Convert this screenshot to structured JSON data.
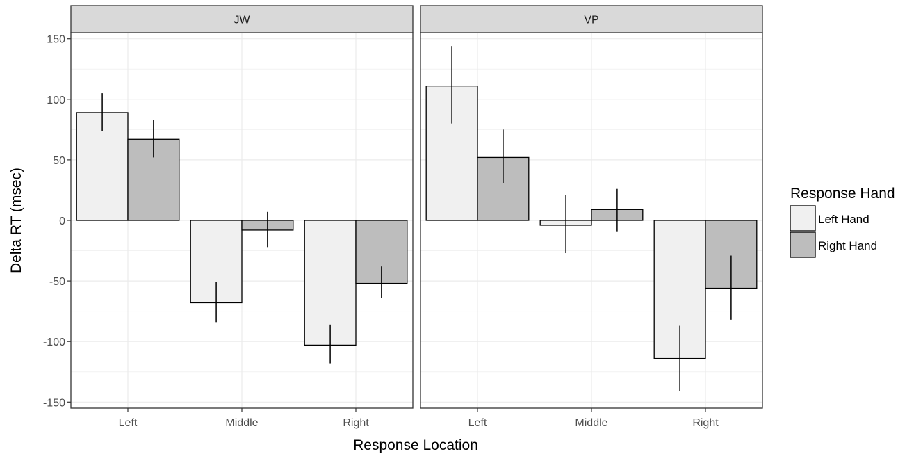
{
  "chart_data": {
    "type": "bar",
    "facets": [
      "JW",
      "VP"
    ],
    "categories": [
      "Left",
      "Middle",
      "Right"
    ],
    "xlabel": "Response Location",
    "ylabel": "Delta RT (msec)",
    "ylim": [
      -155,
      155
    ],
    "yticks": [
      -150,
      -100,
      -50,
      0,
      50,
      100,
      150
    ],
    "ytick_labels": [
      "-150",
      "-100",
      "-50",
      "0",
      "50",
      "100",
      "150"
    ],
    "grid": true,
    "legend": {
      "title": "Response Hand",
      "placement": "right",
      "entries": [
        {
          "label": "Left Hand",
          "color": "#f0f0f0"
        },
        {
          "label": "Right Hand",
          "color": "#bdbdbd"
        }
      ]
    },
    "panels": [
      {
        "facet": "JW",
        "series": [
          {
            "name": "Left Hand",
            "values": [
              89,
              -68,
              -103
            ],
            "err_low": [
              74,
              -84,
              -118
            ],
            "err_high": [
              105,
              -51,
              -86
            ]
          },
          {
            "name": "Right Hand",
            "values": [
              67,
              -8,
              -52
            ],
            "err_low": [
              52,
              -22,
              -64
            ],
            "err_high": [
              83,
              7,
              -38
            ]
          }
        ]
      },
      {
        "facet": "VP",
        "series": [
          {
            "name": "Left Hand",
            "values": [
              111,
              -4,
              -114
            ],
            "err_low": [
              80,
              -27,
              -141
            ],
            "err_high": [
              144,
              21,
              -87
            ]
          },
          {
            "name": "Right Hand",
            "values": [
              52,
              9,
              -56
            ],
            "err_low": [
              31,
              -9,
              -82
            ],
            "err_high": [
              75,
              26,
              -29
            ]
          }
        ]
      }
    ]
  }
}
